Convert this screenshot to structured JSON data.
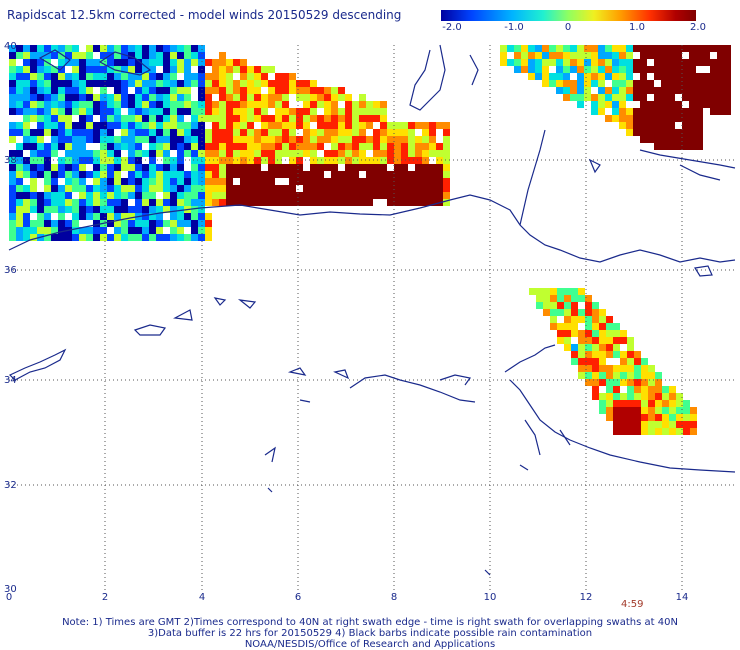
{
  "title": "Rapidscat 12.5km corrected - model winds 20150529 descending",
  "colorbar": {
    "labels": [
      "-2.0",
      "-1.0",
      "0",
      "1.0",
      "2.0"
    ],
    "colors": [
      "#0000a0",
      "#0044ff",
      "#00a8ff",
      "#00e0e0",
      "#40ff90",
      "#c0ff30",
      "#ffe000",
      "#ff8c00",
      "#ff2000",
      "#b00000",
      "#800000"
    ]
  },
  "x_ticks": [
    "0",
    "2",
    "4",
    "6",
    "8",
    "10",
    "12",
    "14"
  ],
  "y_ticks": [
    "40",
    "38",
    "36",
    "34",
    "32",
    "30"
  ],
  "time_label": "4:59",
  "footer": {
    "line1": "Note: 1) Times are GMT 2)Times correspond to 40N at right swath edge - time is right swath for overlapping swaths at 40N",
    "line2": "3)Data buffer is 22 hrs for 20150529 4) Black barbs indicate possible rain contamination",
    "line3": "NOAA/NESDIS/Office of Research and Applications"
  },
  "colors": {
    "text": "#1a2a8c",
    "coast": "#1a2a8c",
    "grid": "#555555"
  }
}
